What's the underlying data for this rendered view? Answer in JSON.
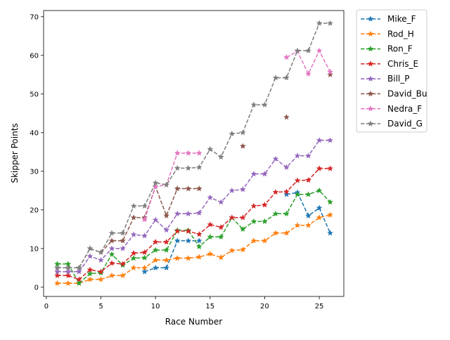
{
  "chart_data": {
    "type": "line",
    "xlabel": "Race Number",
    "ylabel": "Skipper Points",
    "xlim": [
      -0.25,
      27.25
    ],
    "ylim": [
      -2.4,
      71.6
    ],
    "xticks": [
      0,
      5,
      10,
      15,
      20,
      25
    ],
    "yticks": [
      0,
      10,
      20,
      30,
      40,
      50,
      60,
      70
    ],
    "grid": false,
    "legend_placement": "outside-top-right",
    "marker": "star",
    "linestyle": "dashed",
    "x": [
      1,
      2,
      3,
      4,
      5,
      6,
      7,
      8,
      9,
      10,
      11,
      12,
      13,
      14,
      15,
      16,
      17,
      18,
      19,
      20,
      21,
      22,
      23,
      24,
      25,
      26
    ],
    "series": [
      {
        "name": "Mike_F",
        "color": "#1f77b4",
        "values": [
          null,
          null,
          null,
          null,
          null,
          null,
          null,
          null,
          4,
          5,
          5,
          12,
          12,
          12,
          null,
          null,
          null,
          null,
          null,
          null,
          null,
          24,
          24.5,
          18.5,
          20.5,
          14
        ]
      },
      {
        "name": "Rod_H",
        "color": "#ff7f0e",
        "values": [
          1,
          1,
          1,
          2,
          2,
          3,
          3,
          5,
          5,
          7,
          7,
          7.5,
          7.5,
          7.8,
          8.6,
          7.7,
          9.5,
          9.7,
          12,
          12,
          14,
          14,
          16,
          16,
          18,
          18.7
        ]
      },
      {
        "name": "Ron_F",
        "color": "#2ca02c",
        "values": [
          6,
          6,
          1,
          3.5,
          3.7,
          8.5,
          5.7,
          7.5,
          7.6,
          9.6,
          9.6,
          14.7,
          14.7,
          10.5,
          13,
          13,
          18,
          15,
          17,
          17,
          19,
          19,
          24,
          24,
          25,
          22
        ]
      },
      {
        "name": "Chris_E",
        "color": "#d62728",
        "values": [
          3,
          3,
          2,
          4.5,
          4,
          6.2,
          6,
          8.8,
          9,
          11.7,
          11.7,
          14.5,
          14.5,
          13.7,
          16.2,
          15.5,
          18,
          18,
          21,
          21.3,
          24.6,
          24.7,
          27.6,
          27.7,
          30.7,
          30.7
        ]
      },
      {
        "name": "Bill_P",
        "color": "#9467bd",
        "values": [
          4,
          4,
          4,
          8,
          7,
          10,
          10,
          13.6,
          13.3,
          17.4,
          14.8,
          19,
          19,
          19.2,
          23.2,
          22,
          25,
          25.3,
          29.3,
          29.3,
          33.2,
          31,
          34,
          34,
          38,
          38
        ]
      },
      {
        "name": "David_Bu",
        "color": "#8c564b",
        "values": [
          5,
          5,
          5,
          10,
          9,
          12,
          12,
          18,
          18,
          26,
          18.5,
          25.5,
          25.5,
          25.5,
          null,
          null,
          null,
          36.5,
          null,
          null,
          null,
          44,
          null,
          null,
          null,
          55
        ]
      },
      {
        "name": "Nedra_F",
        "color": "#e377c2",
        "values": [
          null,
          null,
          null,
          null,
          null,
          null,
          null,
          null,
          17.5,
          26,
          26.5,
          34.7,
          34.7,
          34.7,
          null,
          null,
          null,
          null,
          null,
          null,
          null,
          59.5,
          61,
          55.2,
          61.2,
          55.7
        ]
      },
      {
        "name": "David_G",
        "color": "#7f7f7f",
        "values": [
          5,
          5,
          5,
          10,
          9,
          14,
          14,
          21,
          21,
          27,
          26.5,
          30.8,
          30.8,
          31,
          35.7,
          33.7,
          39.7,
          40,
          47.2,
          47.2,
          54.2,
          54.2,
          61.2,
          61.2,
          68.3,
          68.3
        ]
      }
    ]
  }
}
